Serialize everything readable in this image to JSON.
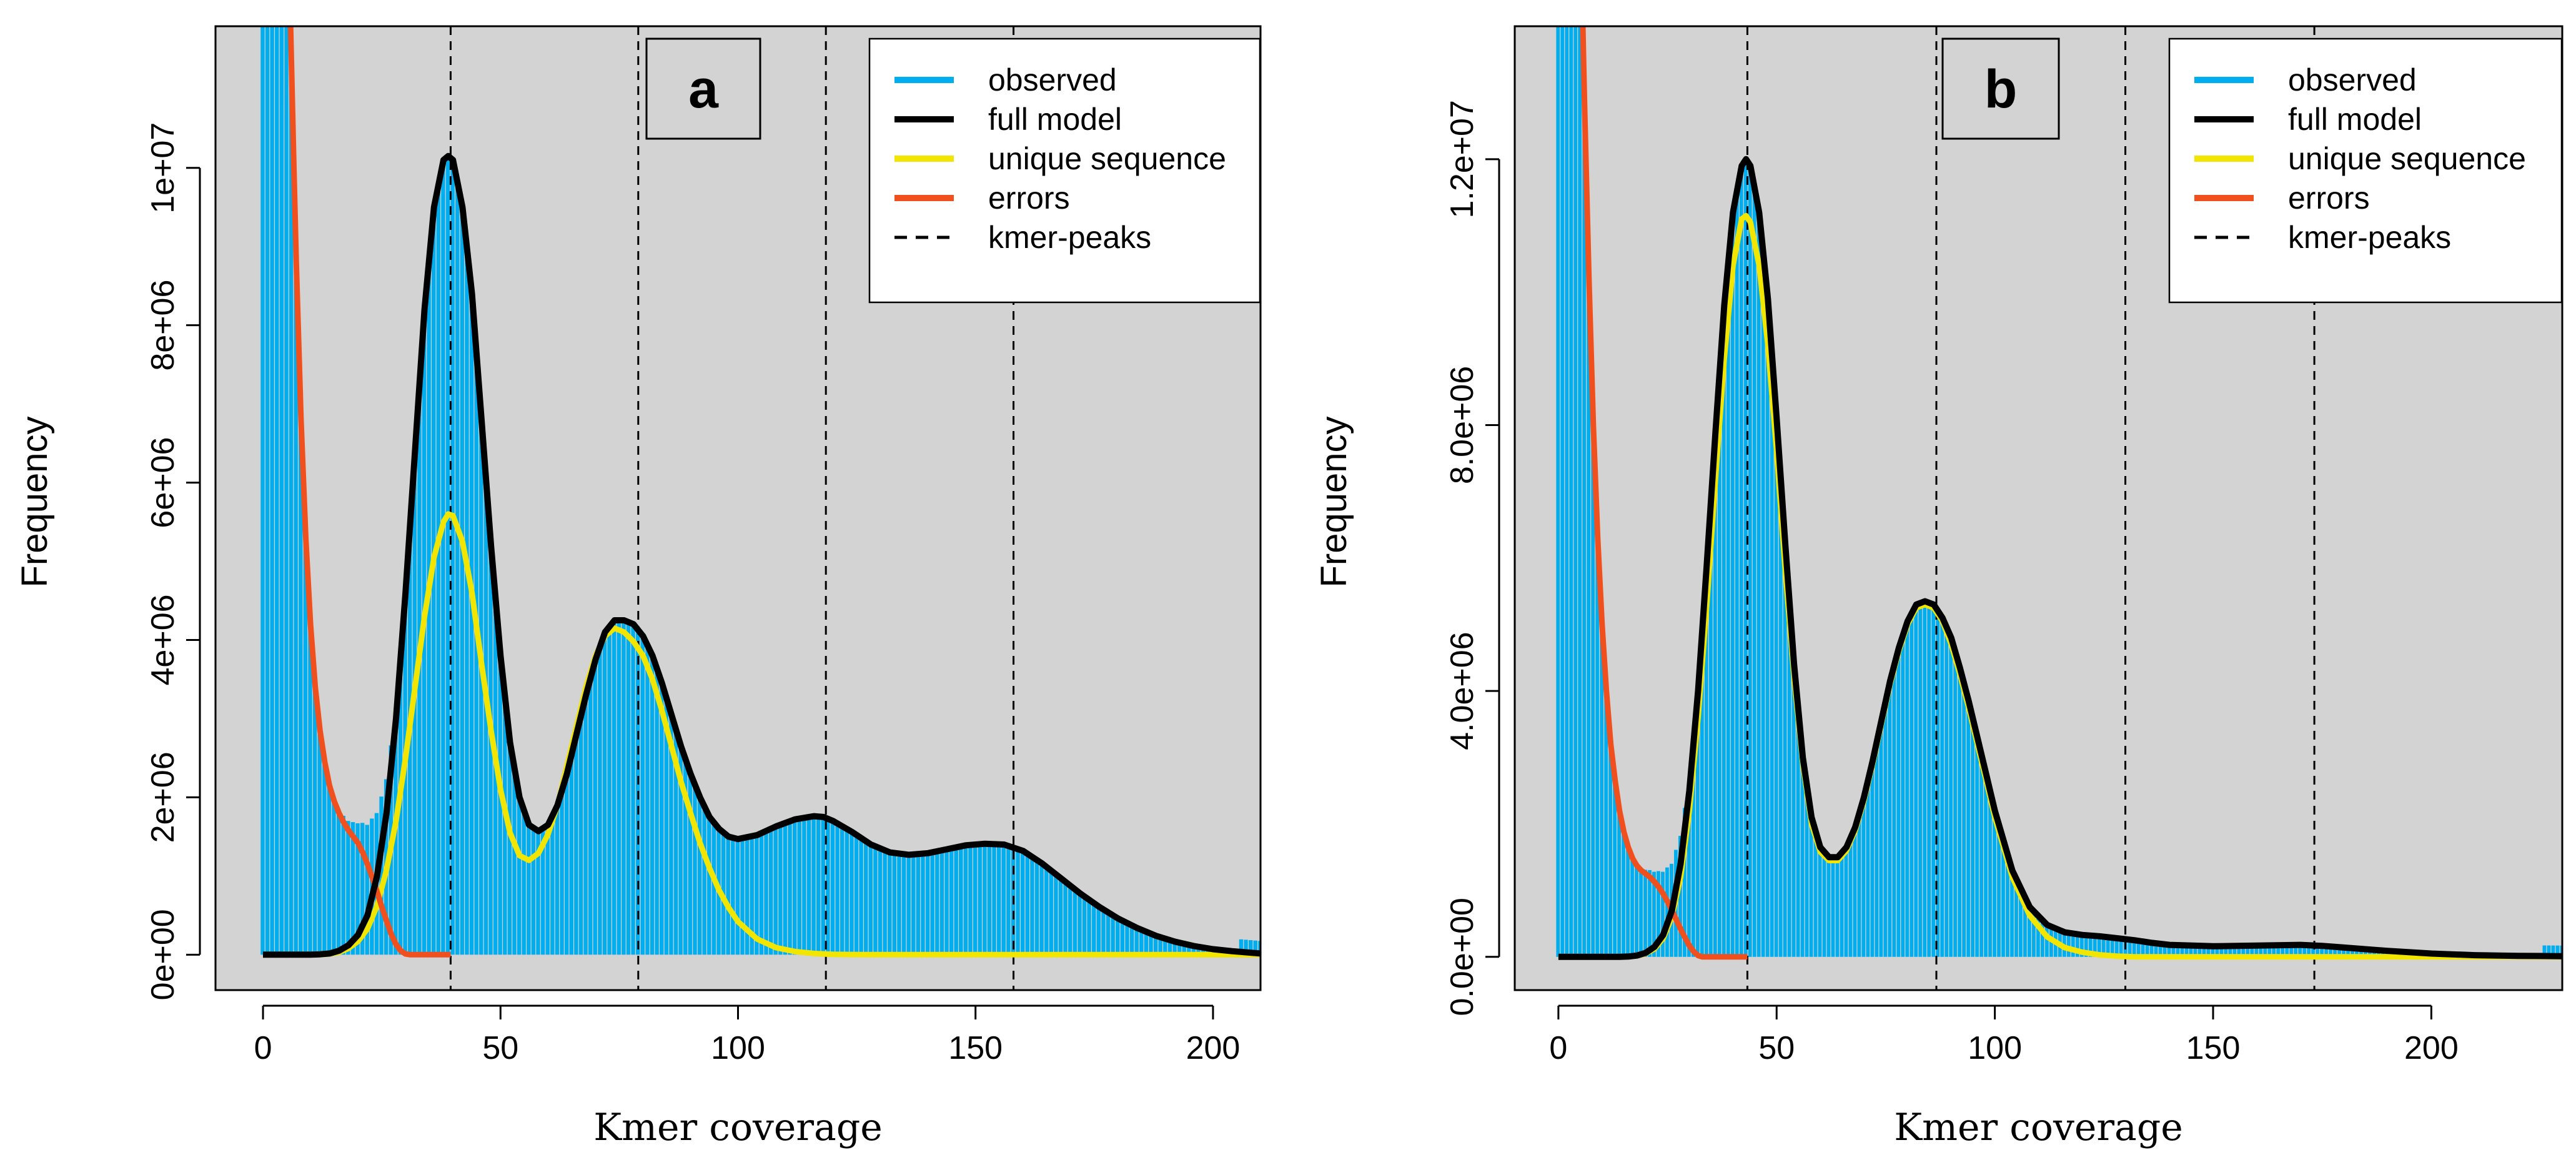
{
  "colors": {
    "observed": "#00AEEF",
    "full_model": "#000000",
    "unique_sequence": "#F2E500",
    "errors": "#F0501E",
    "background": "#D3D3D3"
  },
  "chart_data": [
    {
      "type": "bar",
      "panel_label": "a",
      "xlabel": "Kmer coverage",
      "ylabel": "Frequency",
      "xlim": [
        -10,
        210
      ],
      "ylim": [
        -450000,
        11800000
      ],
      "xticks": [
        0,
        50,
        100,
        150,
        200
      ],
      "xtick_labels": [
        "0",
        "50",
        "100",
        "150",
        "200"
      ],
      "yticks": [
        0,
        2000000,
        4000000,
        6000000,
        8000000,
        10000000
      ],
      "ytick_labels": [
        "0e+00",
        "2e+06",
        "4e+06",
        "6e+06",
        "8e+06",
        "1e+07"
      ],
      "grid": false,
      "legend_position": "top-right",
      "legend": [
        {
          "label": "observed",
          "style": "solid"
        },
        {
          "label": "full model",
          "style": "solid"
        },
        {
          "label": "unique sequence",
          "style": "solid"
        },
        {
          "label": "errors",
          "style": "solid"
        },
        {
          "label": "kmer-peaks",
          "style": "dashed"
        }
      ],
      "kmer_peaks": [
        39.5,
        79,
        118.5,
        158
      ],
      "observed_peaks": [
        [
          39.5,
          10250000
        ],
        [
          79,
          4300000
        ],
        [
          118.5,
          1800000
        ],
        [
          157,
          1450000
        ]
      ],
      "observed_troughs": [
        [
          57,
          1600000
        ],
        [
          103,
          1450000
        ],
        [
          138,
          1270000
        ]
      ],
      "x": [
        0,
        2,
        4,
        6,
        8,
        10,
        12,
        14,
        16,
        18,
        20,
        22,
        24,
        26,
        28,
        30,
        32,
        34,
        36,
        38,
        39,
        40,
        42,
        44,
        46,
        48,
        50,
        52,
        54,
        56,
        58,
        60,
        62,
        64,
        66,
        68,
        70,
        72,
        74,
        76,
        78,
        80,
        82,
        84,
        86,
        88,
        90,
        92,
        94,
        96,
        98,
        100,
        104,
        108,
        112,
        116,
        118,
        120,
        124,
        128,
        132,
        136,
        140,
        144,
        148,
        152,
        156,
        160,
        164,
        168,
        172,
        176,
        180,
        184,
        188,
        192,
        196,
        200,
        204,
        208,
        210
      ],
      "series": [
        {
          "name": "full model",
          "values": [
            0,
            0,
            0,
            0,
            0,
            0,
            5000,
            15000,
            50000,
            120000,
            250000,
            500000,
            1000000,
            1800000,
            3000000,
            4600000,
            6400000,
            8200000,
            9500000,
            10100000,
            10150000,
            10100000,
            9500000,
            8400000,
            6800000,
            5200000,
            3800000,
            2700000,
            2000000,
            1650000,
            1570000,
            1650000,
            1900000,
            2300000,
            2800000,
            3300000,
            3750000,
            4100000,
            4250000,
            4250000,
            4200000,
            4050000,
            3800000,
            3450000,
            3050000,
            2650000,
            2300000,
            2000000,
            1750000,
            1600000,
            1500000,
            1470000,
            1520000,
            1630000,
            1720000,
            1760000,
            1750000,
            1700000,
            1560000,
            1400000,
            1300000,
            1270000,
            1290000,
            1340000,
            1390000,
            1410000,
            1400000,
            1320000,
            1160000,
            970000,
            780000,
            610000,
            460000,
            340000,
            240000,
            165000,
            110000,
            70000,
            45000,
            25000,
            15000
          ]
        },
        {
          "name": "unique sequence",
          "values": [
            0,
            0,
            0,
            0,
            0,
            0,
            3000,
            10000,
            30000,
            80000,
            170000,
            330000,
            620000,
            1080000,
            1700000,
            2500000,
            3400000,
            4300000,
            5050000,
            5500000,
            5600000,
            5580000,
            5250000,
            4600000,
            3700000,
            2850000,
            2100000,
            1550000,
            1260000,
            1200000,
            1290000,
            1530000,
            1900000,
            2400000,
            2900000,
            3400000,
            3800000,
            4050000,
            4150000,
            4100000,
            3980000,
            3800000,
            3500000,
            3100000,
            2650000,
            2200000,
            1800000,
            1420000,
            1100000,
            820000,
            600000,
            420000,
            200000,
            90000,
            40000,
            15000,
            10000,
            5000,
            2000,
            0,
            0,
            0,
            0,
            0,
            0,
            0,
            0,
            0,
            0,
            0,
            0,
            0,
            0,
            0,
            0,
            0,
            0,
            0,
            0,
            0,
            0
          ]
        },
        {
          "name": "errors",
          "x": [
            5.8,
            6.5,
            7,
            8,
            9,
            10,
            11,
            12,
            13,
            14,
            15,
            16,
            17,
            18,
            19,
            20,
            21,
            22,
            23,
            24,
            25,
            26,
            27,
            28,
            29,
            30,
            31,
            35,
            39.5
          ],
          "values": [
            11800000,
            10000000,
            8800000,
            6800000,
            5300000,
            4200000,
            3400000,
            2850000,
            2450000,
            2150000,
            1950000,
            1800000,
            1680000,
            1580000,
            1500000,
            1420000,
            1300000,
            1150000,
            980000,
            800000,
            610000,
            430000,
            260000,
            130000,
            50000,
            10000,
            0,
            0,
            0
          ]
        }
      ]
    },
    {
      "type": "bar",
      "panel_label": "b",
      "xlabel": "Kmer coverage",
      "ylabel": "Frequency",
      "xlim": [
        -10,
        230
      ],
      "ylim": [
        -500000,
        14000000
      ],
      "xticks": [
        0,
        50,
        100,
        150,
        200
      ],
      "xtick_labels": [
        "0",
        "50",
        "100",
        "150",
        "200"
      ],
      "yticks": [
        0,
        4000000,
        8000000,
        12000000
      ],
      "ytick_labels": [
        "0.0e+00",
        "4.0e+06",
        "8.0e+06",
        "1.2e+07"
      ],
      "grid": false,
      "legend_position": "top-right",
      "legend": [
        {
          "label": "observed",
          "style": "solid"
        },
        {
          "label": "full model",
          "style": "solid"
        },
        {
          "label": "unique sequence",
          "style": "solid"
        },
        {
          "label": "errors",
          "style": "solid"
        },
        {
          "label": "kmer-peaks",
          "style": "dashed"
        }
      ],
      "kmer_peaks": [
        43.3,
        86.6,
        129.9,
        173.2
      ],
      "observed_peaks": [
        [
          43,
          12200000
        ],
        [
          86,
          5350000
        ]
      ],
      "observed_troughs": [
        [
          64,
          1500000
        ]
      ],
      "x": [
        0,
        2,
        4,
        6,
        8,
        10,
        12,
        14,
        16,
        18,
        20,
        22,
        24,
        26,
        28,
        30,
        32,
        34,
        36,
        38,
        40,
        42,
        43,
        44,
        46,
        48,
        50,
        52,
        54,
        56,
        58,
        60,
        62,
        64,
        66,
        68,
        70,
        72,
        74,
        76,
        78,
        80,
        82,
        84,
        86,
        88,
        90,
        92,
        94,
        96,
        98,
        100,
        104,
        108,
        112,
        116,
        120,
        124,
        128,
        132,
        136,
        140,
        150,
        160,
        170,
        175,
        180,
        190,
        200,
        210,
        220,
        230
      ],
      "series": [
        {
          "name": "full model",
          "values": [
            0,
            0,
            0,
            0,
            0,
            0,
            0,
            0,
            5000,
            20000,
            60000,
            150000,
            330000,
            700000,
            1400000,
            2500000,
            4000000,
            5900000,
            7900000,
            9800000,
            11200000,
            11900000,
            12000000,
            11900000,
            11200000,
            9900000,
            8100000,
            6200000,
            4400000,
            3000000,
            2100000,
            1650000,
            1500000,
            1500000,
            1650000,
            1950000,
            2400000,
            2950000,
            3550000,
            4150000,
            4650000,
            5050000,
            5300000,
            5350000,
            5300000,
            5100000,
            4800000,
            4350000,
            3850000,
            3300000,
            2750000,
            2200000,
            1300000,
            750000,
            480000,
            370000,
            330000,
            310000,
            280000,
            250000,
            210000,
            180000,
            160000,
            170000,
            180000,
            165000,
            140000,
            90000,
            50000,
            25000,
            15000,
            10000
          ]
        },
        {
          "name": "unique sequence",
          "values": [
            0,
            0,
            0,
            0,
            0,
            0,
            0,
            0,
            4000,
            15000,
            50000,
            120000,
            280000,
            600000,
            1200000,
            2200000,
            3600000,
            5300000,
            7200000,
            9000000,
            10400000,
            11100000,
            11150000,
            11050000,
            10400000,
            9200000,
            7600000,
            5800000,
            4200000,
            2900000,
            2000000,
            1580000,
            1450000,
            1450000,
            1600000,
            1900000,
            2350000,
            2900000,
            3500000,
            4100000,
            4600000,
            5000000,
            5250000,
            5300000,
            5250000,
            5050000,
            4700000,
            4250000,
            3750000,
            3200000,
            2650000,
            2100000,
            1200000,
            620000,
            300000,
            140000,
            70000,
            30000,
            10000,
            0,
            0,
            0,
            0,
            0,
            0,
            0,
            0,
            0,
            0,
            0,
            0,
            0
          ]
        },
        {
          "name": "errors",
          "x": [
            5.6,
            6,
            7,
            8,
            9,
            10,
            11,
            12,
            13,
            14,
            15,
            16,
            17,
            18,
            19,
            20,
            21,
            22,
            23,
            24,
            25,
            26,
            27,
            28,
            29,
            30,
            31,
            32,
            33,
            36,
            40,
            43.3
          ],
          "values": [
            14000000,
            12800000,
            10200000,
            8000000,
            6300000,
            5000000,
            4000000,
            3200000,
            2650000,
            2200000,
            1880000,
            1650000,
            1480000,
            1370000,
            1300000,
            1250000,
            1200000,
            1130000,
            1050000,
            950000,
            830000,
            700000,
            560000,
            420000,
            290000,
            170000,
            80000,
            20000,
            0,
            0,
            0,
            0
          ]
        }
      ]
    }
  ]
}
